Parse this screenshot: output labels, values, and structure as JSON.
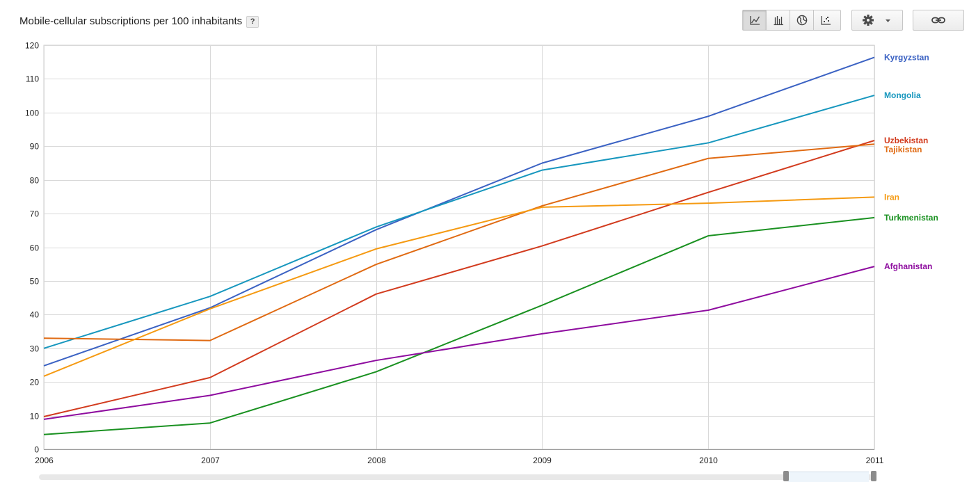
{
  "header": {
    "title": "Mobile-cellular subscriptions per 100 inhabitants",
    "help_label": "?"
  },
  "toolbar": {
    "views": [
      {
        "icon": "line-chart-icon",
        "active": true
      },
      {
        "icon": "bar-chart-icon",
        "active": false
      },
      {
        "icon": "globe-icon",
        "active": false
      },
      {
        "icon": "scatter-icon",
        "active": false
      }
    ],
    "settings_icon": "gear-icon",
    "link_icon": "link-icon"
  },
  "chart_data": {
    "type": "line",
    "title": "Mobile-cellular subscriptions per 100 inhabitants",
    "xlabel": "",
    "ylabel": "",
    "x": [
      2006,
      2007,
      2008,
      2009,
      2010,
      2011
    ],
    "xlim": [
      2006,
      2011
    ],
    "ylim": [
      0,
      120
    ],
    "yticks": [
      0,
      10,
      20,
      30,
      40,
      50,
      60,
      70,
      80,
      90,
      100,
      110,
      120
    ],
    "grid": true,
    "legend": "right-end labels",
    "series": [
      {
        "name": "Kyrgyzstan",
        "color": "#3b62c3",
        "values": [
          24.8,
          42.0,
          65.2,
          85.0,
          98.9,
          116.4
        ]
      },
      {
        "name": "Mongolia",
        "color": "#1797be",
        "values": [
          30.0,
          45.4,
          66.0,
          82.9,
          91.0,
          105.1
        ]
      },
      {
        "name": "Uzbekistan",
        "color": "#d23b1e",
        "values": [
          9.7,
          21.3,
          46.1,
          60.4,
          76.3,
          91.7
        ]
      },
      {
        "name": "Tajikistan",
        "color": "#e06a12",
        "values": [
          33.0,
          32.3,
          54.9,
          72.3,
          86.4,
          90.6
        ]
      },
      {
        "name": "Iran",
        "color": "#f59a12",
        "values": [
          21.7,
          41.7,
          59.5,
          71.9,
          73.1,
          74.9
        ]
      },
      {
        "name": "Turkmenistan",
        "color": "#1a9121",
        "values": [
          4.4,
          7.8,
          23.0,
          42.8,
          63.4,
          68.8
        ]
      },
      {
        "name": "Afghanistan",
        "color": "#8e0c9f",
        "values": [
          8.9,
          16.0,
          26.4,
          34.3,
          41.3,
          54.3
        ]
      }
    ]
  }
}
